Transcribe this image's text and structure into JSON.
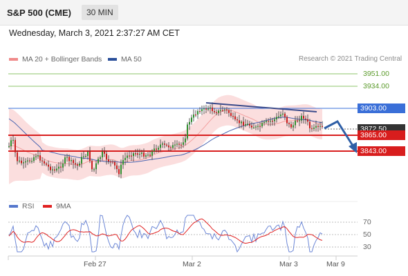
{
  "header": {
    "title": "S&P 500 (CME)",
    "timeframe": "30 MIN"
  },
  "timestamp": "Wednesday, March 3, 2021 2:37:27 AM CET",
  "legend_main": [
    {
      "label": "MA 20 + Bollinger Bands",
      "color": "#f08a8a"
    },
    {
      "label": "MA 50",
      "color": "#2a4f9a"
    }
  ],
  "copyright": "Research © 2021 Trading Central",
  "price_labels": {
    "l3951": "3951.00",
    "l3934": "3934.00",
    "l3903": "3903.00",
    "l3872": "3872.50",
    "l3865": "3865.00",
    "l3843": "3843.00"
  },
  "legend_rsi": [
    {
      "label": "RSI",
      "color": "#5577cc"
    },
    {
      "label": "9MA",
      "color": "#e02020"
    }
  ],
  "rsi_levels": [
    "70",
    "50",
    "30"
  ],
  "x_labels": [
    "Feb 27",
    "Mar 2",
    "Mar 3",
    "Mar 9"
  ],
  "colors": {
    "green_line": "#8cc56a",
    "blue_line": "#3a6fd8",
    "red_line": "#d81d1d",
    "candle_up": "#2f8f2f",
    "candle_down": "#c81e1e",
    "bands": "#fbdada",
    "current_price_box": "#333333"
  }
}
